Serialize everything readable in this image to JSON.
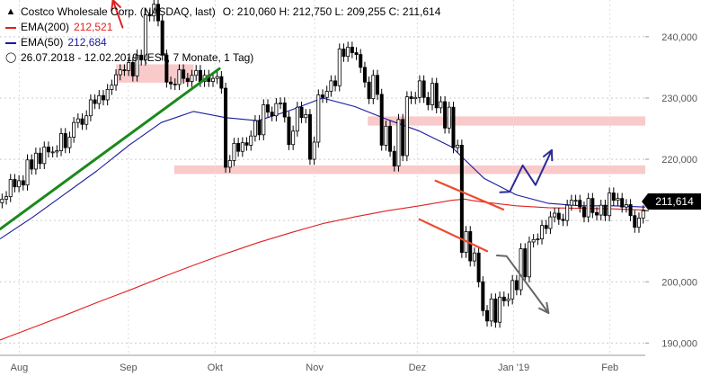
{
  "legend": {
    "title": "Costco Wholesale Corp. (NASDAQ, last)",
    "ohlc": "O: 210,060  H: 212,750  L: 209,255  C: 211,614",
    "ema200_label": "EMA(200)",
    "ema200_value": "212,521",
    "ema50_label": "EMA(50)",
    "ema50_value": "212,684",
    "range": "26.07.2018 - 12.02.2019",
    "settings": "(EST, 7 Monate, 1 Tag)"
  },
  "last_price_label": "211,614",
  "colors": {
    "ema200": "#e02020",
    "ema50": "#1a1aa0",
    "trend_up": "#1a8a1a",
    "zone": "#f7b8b8",
    "channel": "#ee4a2e",
    "bull_arrow": "#2a2a9a",
    "bear_arrow": "#666666",
    "candle": "#000000"
  },
  "chart_data": {
    "type": "candlestick",
    "title": "Costco Wholesale Corp. (NASDAQ, last)",
    "y_axis": {
      "position": "right",
      "ticks": [
        190,
        200,
        210,
        220,
        230,
        240
      ],
      "tick_labels": [
        "190,000",
        "200,000",
        "",
        "220,000",
        "230,000",
        "240,000"
      ],
      "range": [
        188,
        246
      ]
    },
    "x_axis": {
      "range": [
        "2018-07-26",
        "2019-02-12"
      ],
      "month_ticks": [
        {
          "label": "Aug",
          "date": "2018-08-01"
        },
        {
          "label": "Sep",
          "date": "2018-09-04"
        },
        {
          "label": "Okt",
          "date": "2018-10-01"
        },
        {
          "label": "Nov",
          "date": "2018-11-01"
        },
        {
          "label": "Dez",
          "date": "2018-12-03"
        },
        {
          "label": "Jan '19",
          "date": "2019-01-02"
        },
        {
          "label": "Feb",
          "date": "2019-02-01"
        }
      ]
    },
    "last_close": 211.614,
    "ema200_points": [
      [
        0,
        190.5
      ],
      [
        0.05,
        192.5
      ],
      [
        0.1,
        194.5
      ],
      [
        0.15,
        196.6
      ],
      [
        0.2,
        198.6
      ],
      [
        0.25,
        200.7
      ],
      [
        0.3,
        202.7
      ],
      [
        0.35,
        204.6
      ],
      [
        0.4,
        206.4
      ],
      [
        0.45,
        208.0
      ],
      [
        0.5,
        209.5
      ],
      [
        0.55,
        210.6
      ],
      [
        0.6,
        211.6
      ],
      [
        0.65,
        212.4
      ],
      [
        0.7,
        213.3
      ],
      [
        0.72,
        213.5
      ],
      [
        0.73,
        213.3
      ],
      [
        0.75,
        213.0
      ],
      [
        0.8,
        212.4
      ],
      [
        0.85,
        212.1
      ],
      [
        0.9,
        212.0
      ],
      [
        0.95,
        211.9
      ],
      [
        1.0,
        211.7
      ]
    ],
    "ema50_points": [
      [
        0,
        207.0
      ],
      [
        0.05,
        210.5
      ],
      [
        0.1,
        214.3
      ],
      [
        0.15,
        218.1
      ],
      [
        0.2,
        222.3
      ],
      [
        0.25,
        226.0
      ],
      [
        0.3,
        227.8
      ],
      [
        0.35,
        226.8
      ],
      [
        0.4,
        226.3
      ],
      [
        0.45,
        228.0
      ],
      [
        0.5,
        230.0
      ],
      [
        0.55,
        228.6
      ],
      [
        0.6,
        226.5
      ],
      [
        0.65,
        224.6
      ],
      [
        0.7,
        222.0
      ],
      [
        0.75,
        216.9
      ],
      [
        0.8,
        214.2
      ],
      [
        0.85,
        212.8
      ],
      [
        0.9,
        212.4
      ],
      [
        0.95,
        212.4
      ],
      [
        1.0,
        212.2
      ]
    ],
    "candles_close": [
      213.5,
      213.9,
      216.7,
      215.5,
      216.5,
      215.8,
      219.9,
      218.4,
      221.0,
      219.3,
      222.0,
      221.2,
      221.2,
      221.4,
      224.2,
      221.9,
      223.6,
      226.0,
      226.6,
      225.7,
      227.1,
      229.7,
      229.1,
      230.4,
      229.7,
      231.4,
      232.1,
      233.8,
      234.6,
      234.5,
      235.8,
      233.6,
      237.0,
      236.2,
      243.6,
      243.4,
      245.3,
      242.6,
      237.0,
      232.6,
      232.3,
      232.2,
      234.6,
      233.2,
      232.7,
      233.7,
      234.5,
      232.7,
      233.7,
      232.7,
      233.2,
      233.5,
      231.6,
      218.7,
      219.8,
      222.6,
      221.3,
      222.7,
      222.3,
      223.8,
      226.3,
      224.0,
      228.9,
      227.7,
      227.1,
      229.1,
      229.2,
      226.9,
      222.4,
      224.6,
      228.5,
      226.8,
      227.3,
      220.0,
      222.8,
      230.5,
      230.1,
      231.1,
      232.8,
      232.0,
      238.0,
      236.8,
      238.3,
      237.4,
      237.1,
      235.0,
      232.6,
      229.9,
      233.7,
      230.6,
      222.3,
      225.4,
      221.3,
      218.9,
      226.5,
      220.6,
      230.2,
      229.9,
      230.1,
      232.8,
      230.1,
      228.9,
      232.4,
      228.4,
      229.4,
      225.1,
      228.5,
      221.9,
      222.3,
      204.8,
      208.2,
      203.4,
      204.7,
      200.0,
      195.3,
      193.6,
      197.2,
      193.4,
      197.5,
      196.9,
      197.2,
      200.2,
      198.7,
      205.4,
      200.8,
      206.5,
      206.9,
      207.0,
      209.2,
      208.7,
      210.6,
      211.2,
      210.2,
      210.0,
      212.5,
      213.3,
      213.3,
      212.2,
      210.6,
      213.6,
      211.3,
      210.9,
      212.5,
      210.8,
      214.5,
      213.3,
      213.6,
      212.2,
      212.6,
      210.8,
      208.9,
      210.4,
      211.6
    ],
    "annotations": [
      {
        "type": "trendline",
        "name": "green-uptrend",
        "from": [
          0,
          208.6
        ],
        "to": [
          0.34,
          234.8
        ]
      },
      {
        "type": "zone",
        "name": "resistance-zone-226",
        "y": [
          225.5,
          227.0
        ],
        "from": 0.57,
        "to": 1.0
      },
      {
        "type": "zone",
        "name": "support-zone-218",
        "y": [
          217.6,
          219.0
        ],
        "from": 0.27,
        "to": 1.0
      },
      {
        "type": "zone",
        "name": "congestion-zone-233",
        "y": [
          232.5,
          235.5
        ],
        "from": 0.18,
        "to": 0.3
      },
      {
        "type": "channel-line",
        "name": "channel-upper",
        "from": [
          0.675,
          216.5
        ],
        "to": [
          0.78,
          211.8
        ]
      },
      {
        "type": "channel-line",
        "name": "channel-lower",
        "from": [
          0.65,
          210.2
        ],
        "to": [
          0.755,
          205.0
        ]
      },
      {
        "type": "arrow",
        "name": "bull-scenario",
        "points": [
          [
            0.775,
            214.6
          ],
          [
            0.79,
            214.7
          ],
          [
            0.81,
            219.0
          ],
          [
            0.83,
            215.8
          ],
          [
            0.855,
            221.5
          ]
        ]
      },
      {
        "type": "arrow",
        "name": "bear-scenario",
        "points": [
          [
            0.77,
            204.3
          ],
          [
            0.785,
            204.2
          ],
          [
            0.85,
            194.9
          ]
        ]
      },
      {
        "type": "arrow",
        "name": "red-top-arrow",
        "points": [
          [
            0.19,
            241.5
          ],
          [
            0.175,
            246.0
          ]
        ]
      }
    ]
  }
}
